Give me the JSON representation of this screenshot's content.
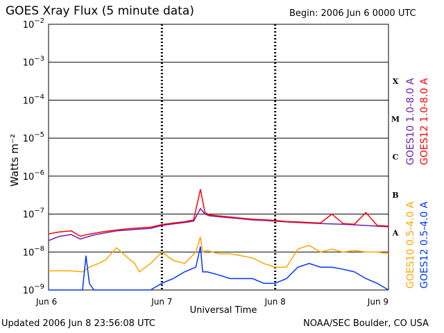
{
  "page": {
    "title": "GOES Xray Flux (5 minute data)",
    "begin": "Begin:  2006 Jun 6 0000 UTC",
    "updated": "Updated 2006 Jun  8 23:56:08 UTC",
    "credit": "NOAA/SEC Boulder, CO USA"
  },
  "chart_data": {
    "type": "line",
    "title": "GOES Xray Flux (5 minute data)",
    "xlabel": "Universal Time",
    "ylabel": "Watts m⁻²",
    "y_scale": "log",
    "ylim": [
      1e-09,
      0.01
    ],
    "xlim": [
      0,
      3
    ],
    "x_ticks": [
      {
        "value": 0,
        "label": "Jun 6"
      },
      {
        "value": 1,
        "label": "Jun 7"
      },
      {
        "value": 2,
        "label": "Jun 8"
      },
      {
        "value": 3,
        "label": "Jun 9"
      }
    ],
    "y_ticks": [
      {
        "value": 1e-09,
        "mantissa": "10",
        "exp": "−9"
      },
      {
        "value": 1e-08,
        "mantissa": "10",
        "exp": "−8"
      },
      {
        "value": 1e-07,
        "mantissa": "10",
        "exp": "−7"
      },
      {
        "value": 1e-06,
        "mantissa": "10",
        "exp": "−6"
      },
      {
        "value": 1e-05,
        "mantissa": "10",
        "exp": "−5"
      },
      {
        "value": 0.0001,
        "mantissa": "10",
        "exp": "−4"
      },
      {
        "value": 0.001,
        "mantissa": "10",
        "exp": "−3"
      },
      {
        "value": 0.01,
        "mantissa": "10",
        "exp": "−2"
      }
    ],
    "flare_classes": [
      {
        "label": "A",
        "value": 3.2e-08
      },
      {
        "label": "B",
        "value": 3.2e-07
      },
      {
        "label": "C",
        "value": 3.2e-06
      },
      {
        "label": "M",
        "value": 3.2e-05
      },
      {
        "label": "X",
        "value": 0.00032
      }
    ],
    "legend_placement": "right",
    "series": [
      {
        "name": "GOES10 1.0-8.0 A",
        "color": "#6a1fb0",
        "band": "long",
        "x": [
          0,
          0.05,
          0.1,
          0.2,
          0.28,
          0.32,
          0.4,
          0.5,
          0.6,
          0.7,
          0.8,
          0.9,
          1.0,
          1.1,
          1.2,
          1.28,
          1.34,
          1.38,
          1.42,
          1.5,
          1.6,
          1.7,
          1.8,
          1.9,
          2.0,
          2.1,
          2.2,
          2.3,
          2.4,
          2.5,
          2.6,
          2.7,
          2.8,
          2.9,
          3.0
        ],
        "y": [
          2e-08,
          2.3e-08,
          2.6e-08,
          2.9e-08,
          2.2e-08,
          2.4e-08,
          2.8e-08,
          3.2e-08,
          3.6e-08,
          3.8e-08,
          4e-08,
          4.2e-08,
          5e-08,
          5.5e-08,
          6e-08,
          6.5e-08,
          1.4e-07,
          1e-07,
          9e-08,
          8.5e-08,
          8e-08,
          7.5e-08,
          7e-08,
          6.8e-08,
          6.5e-08,
          6.2e-08,
          6e-08,
          5.8e-08,
          5.6e-08,
          5.5e-08,
          5.4e-08,
          5.2e-08,
          5e-08,
          4.8e-08,
          4.6e-08
        ]
      },
      {
        "name": "GOES12 1.0-8.0 A",
        "color": "#ff0000",
        "band": "long",
        "x": [
          0,
          0.05,
          0.1,
          0.2,
          0.28,
          0.32,
          0.4,
          0.5,
          0.6,
          0.7,
          0.8,
          0.9,
          1.0,
          1.1,
          1.2,
          1.28,
          1.34,
          1.38,
          1.42,
          1.5,
          1.6,
          1.7,
          1.8,
          1.9,
          2.0,
          2.1,
          2.2,
          2.3,
          2.4,
          2.5,
          2.6,
          2.7,
          2.8,
          2.9,
          3.0
        ],
        "y": [
          3e-08,
          3.2e-08,
          3.4e-08,
          3.6e-08,
          2.6e-08,
          2.8e-08,
          3.1e-08,
          3.5e-08,
          3.8e-08,
          4.1e-08,
          4.3e-08,
          4.5e-08,
          5.3e-08,
          5.8e-08,
          6.3e-08,
          7e-08,
          4.5e-07,
          1.1e-07,
          9.5e-08,
          9e-08,
          8.4e-08,
          7.8e-08,
          7.3e-08,
          7.1e-08,
          6.8e-08,
          6.4e-08,
          6.2e-08,
          6e-08,
          5.8e-08,
          1e-07,
          5.6e-08,
          5.4e-08,
          1.1e-07,
          5e-08,
          4.8e-08
        ]
      },
      {
        "name": "GOES10 0.5-4.0 A",
        "color": "#ffa500",
        "band": "short",
        "x": [
          0,
          0.1,
          0.2,
          0.3,
          0.36,
          0.44,
          0.5,
          0.6,
          0.7,
          0.76,
          0.8,
          0.9,
          1.0,
          1.1,
          1.2,
          1.3,
          1.34,
          1.36,
          1.4,
          1.5,
          1.6,
          1.7,
          1.8,
          1.9,
          2.0,
          2.1,
          2.2,
          2.3,
          2.4,
          2.5,
          2.6,
          2.7,
          2.8,
          2.9,
          3.0
        ],
        "y": [
          3.2e-09,
          3.2e-09,
          3.2e-09,
          3e-09,
          4e-09,
          5e-09,
          6e-09,
          1.3e-08,
          7e-09,
          5e-09,
          3e-09,
          5e-09,
          1e-08,
          6e-09,
          5e-09,
          1e-08,
          2.5e-08,
          1e-08,
          1.1e-08,
          9e-09,
          9e-09,
          8e-09,
          7e-09,
          5e-09,
          4e-09,
          4e-09,
          1.2e-08,
          1.5e-08,
          1e-08,
          1.2e-08,
          1e-08,
          1.1e-08,
          1e-08,
          1e-08,
          9e-09
        ]
      },
      {
        "name": "GOES12 0.5-4.0 A",
        "color": "#0033ff",
        "band": "short",
        "x": [
          0,
          0.1,
          0.2,
          0.3,
          0.33,
          0.36,
          0.4,
          0.5,
          0.6,
          0.7,
          0.8,
          0.9,
          1.0,
          1.1,
          1.2,
          1.3,
          1.34,
          1.36,
          1.4,
          1.5,
          1.6,
          1.7,
          1.8,
          1.9,
          2.0,
          2.1,
          2.2,
          2.3,
          2.4,
          2.5,
          2.6,
          2.7,
          2.8,
          2.9,
          3.0
        ],
        "y": [
          1e-09,
          1e-09,
          1e-09,
          1e-09,
          8e-09,
          1.5e-09,
          1e-09,
          1e-09,
          1e-09,
          1e-09,
          1e-09,
          1e-09,
          1.5e-09,
          2e-09,
          3e-09,
          4e-09,
          1.4e-08,
          3e-09,
          3e-09,
          2.5e-09,
          2e-09,
          2e-09,
          2e-09,
          1.5e-09,
          1.5e-09,
          2e-09,
          4e-09,
          5e-09,
          4e-09,
          4e-09,
          3.5e-09,
          3e-09,
          2e-09,
          1.5e-09,
          1e-09
        ]
      }
    ]
  }
}
